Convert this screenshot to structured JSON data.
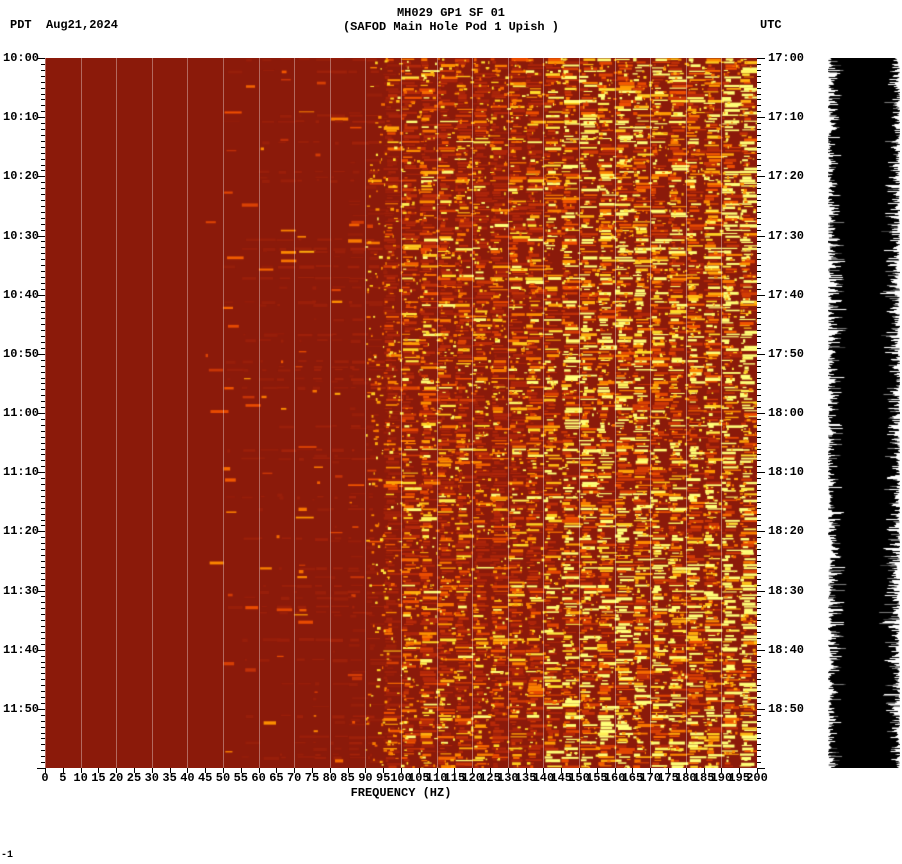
{
  "header": {
    "station_code": "MH029 GP1 SF 01",
    "station_desc": "(SAFOD Main Hole Pod 1 Upish )",
    "tz_left": "PDT",
    "date": "Aug21,2024",
    "tz_right": "UTC"
  },
  "spectrogram": {
    "type": "heatmap",
    "x_axis": {
      "label": "FREQUENCY (HZ)",
      "min": 0,
      "max": 200,
      "tick_step": 5,
      "ticks": [
        0,
        5,
        10,
        15,
        20,
        25,
        30,
        35,
        40,
        45,
        50,
        55,
        60,
        65,
        70,
        75,
        80,
        85,
        90,
        95,
        100,
        105,
        110,
        115,
        120,
        125,
        130,
        135,
        140,
        145,
        150,
        155,
        160,
        165,
        170,
        175,
        180,
        185,
        190,
        195,
        200
      ],
      "grid_step": 10,
      "label_fontsize": 12
    },
    "left_time": {
      "tz": "PDT",
      "start": "10:00",
      "labels": [
        "10:00",
        "10:10",
        "10:20",
        "10:30",
        "10:40",
        "10:50",
        "11:00",
        "11:10",
        "11:20",
        "11:30",
        "11:40",
        "11:50"
      ],
      "minor_per_major": 10,
      "total_minutes": 120
    },
    "right_time": {
      "tz": "UTC",
      "start": "17:00",
      "labels": [
        "17:00",
        "17:10",
        "17:20",
        "17:30",
        "17:40",
        "17:50",
        "18:00",
        "18:10",
        "18:20",
        "18:30",
        "18:40",
        "18:50"
      ]
    },
    "colors": {
      "background": "#8b1a0a",
      "low": "#8b1a0a",
      "mid": "#d23a0a",
      "mid_hi": "#ff6a00",
      "high": "#ffd000",
      "peak": "#ffff66",
      "gridline": "rgba(255,255,255,0.35)"
    },
    "intensity_model": {
      "_comment": "intensity 0..1 per x-bin; higher at 95-200Hz. Random flecks rendered on top.",
      "bins": 41,
      "base": [
        0.02,
        0.02,
        0.02,
        0.02,
        0.02,
        0.02,
        0.02,
        0.02,
        0.02,
        0.03,
        0.04,
        0.05,
        0.05,
        0.06,
        0.06,
        0.07,
        0.07,
        0.08,
        0.08,
        0.18,
        0.35,
        0.4,
        0.38,
        0.35,
        0.33,
        0.33,
        0.35,
        0.38,
        0.45,
        0.55,
        0.6,
        0.62,
        0.62,
        0.6,
        0.55,
        0.5,
        0.48,
        0.5,
        0.55,
        0.65,
        0.7
      ]
    },
    "fleck_count": 3400,
    "seed": 20240821
  },
  "waveform": {
    "color": "#000000",
    "background": "#ffffff",
    "samples": 710,
    "base_halfwidth": 24,
    "jitter": 12,
    "seed": 99
  },
  "sidemark": "-1"
}
